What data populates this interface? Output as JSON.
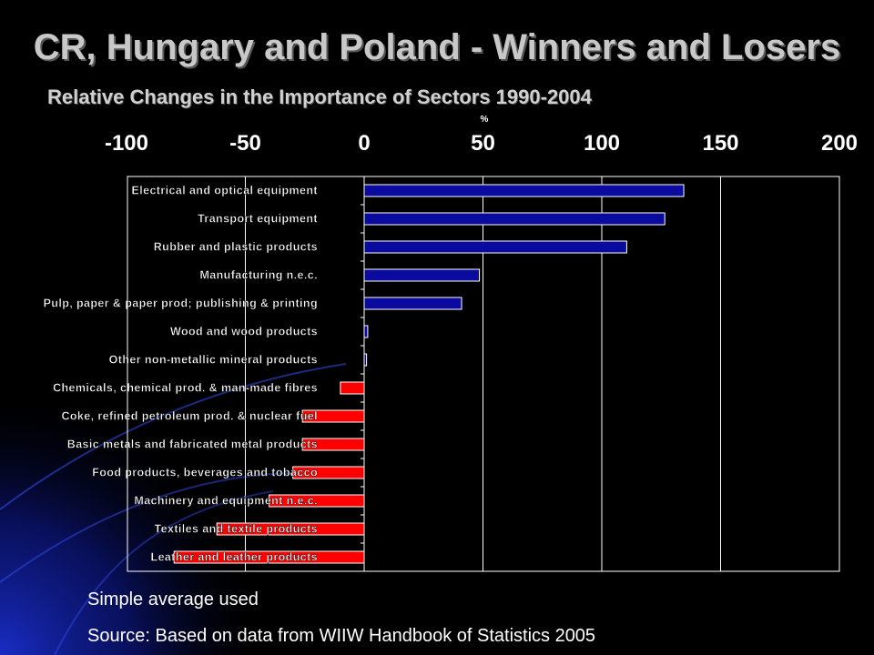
{
  "slide": {
    "title": "CR, Hungary and Poland - Winners and Losers",
    "subtitle": "Relative Changes in the Importance of Sectors 1990-2004",
    "note": "Simple average used",
    "source": "Source: Based on data from WIIW Handbook of Statistics 2005"
  },
  "chart_data": {
    "type": "bar",
    "orientation": "horizontal",
    "unit_label": "%",
    "xlim": [
      -100,
      200
    ],
    "xticks": [
      "-100",
      "-50",
      "0",
      "50",
      "100",
      "150",
      "200"
    ],
    "xtick_values": [
      -100,
      -50,
      0,
      50,
      100,
      150,
      200
    ],
    "grid": true,
    "legend": "none",
    "categories": [
      "Electrical and optical equipment",
      "Transport equipment",
      "Rubber and plastic products",
      "Manufacturing n.e.c.",
      "Pulp, paper & paper prod; publishing & printing",
      "Wood and wood products",
      "Other non-metallic mineral products",
      "Chemicals, chemical prod. & man-made fibres",
      "Coke, refined petroleum prod. & nuclear fuel",
      "Basic metals and fabricated metal products",
      "Food products, beverages and tobacco",
      "Machinery and equipment n.e.c.",
      "Textiles and textile products",
      "Leather and leather products"
    ],
    "values": [
      134.5,
      126.5,
      110.5,
      48.5,
      41,
      1.5,
      1,
      -10,
      -26,
      -26,
      -30,
      -40,
      -62,
      -80
    ],
    "colors": {
      "positive": "#0a0a9e",
      "negative": "#ff0000",
      "plot_border": "#ffffff",
      "axis_text": "#ffffff"
    }
  }
}
